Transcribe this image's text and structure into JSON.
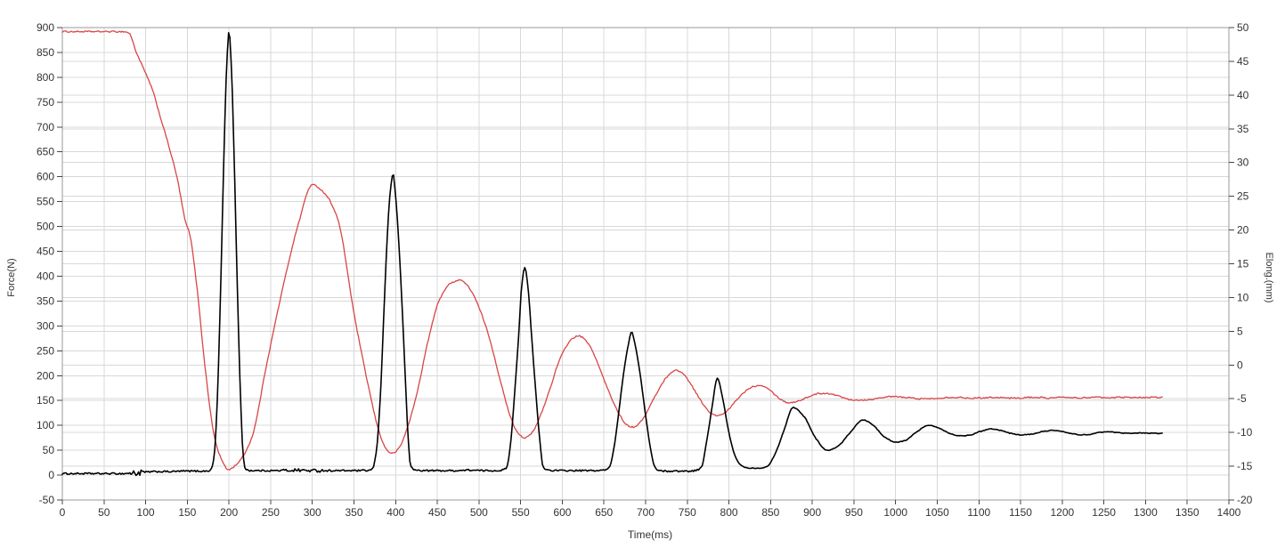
{
  "chart_data": {
    "type": "line",
    "title": "",
    "xlabel": "Time(ms)",
    "ylabel_left": "Force(N)",
    "ylabel_right": "Elong.(mm)",
    "legend": "none",
    "grid": {
      "show": true,
      "vertical_step_ms": 50,
      "horizontal_left_step": 50,
      "horizontal_right_step": 5
    },
    "x_axis": {
      "min": 0,
      "max": 1400,
      "ticks": [
        0,
        50,
        100,
        150,
        200,
        250,
        300,
        350,
        400,
        450,
        500,
        550,
        600,
        650,
        700,
        750,
        800,
        850,
        900,
        950,
        1000,
        1050,
        1100,
        1150,
        1200,
        1250,
        1300,
        1350,
        1400
      ]
    },
    "y_axis_left": {
      "min": -50,
      "max": 900,
      "ticks": [
        900,
        850,
        800,
        750,
        700,
        650,
        600,
        550,
        500,
        450,
        400,
        350,
        300,
        250,
        200,
        150,
        100,
        50,
        0,
        -50
      ]
    },
    "y_axis_right": {
      "min": -20,
      "max": 50,
      "ticks": [
        50,
        45,
        40,
        35,
        30,
        25,
        20,
        15,
        10,
        5,
        0,
        -5,
        -10,
        -15,
        -20
      ]
    },
    "series": [
      {
        "name": "force",
        "axis": "left",
        "color": "#000000",
        "width": 1.6,
        "noise": {
          "base": 0.7,
          "baseline": 1.6,
          "baseline_threshold": 25,
          "baseline_t_max": 765,
          "burst": {
            "t0": 82,
            "t1": 100,
            "amp": 6.5
          },
          "blob": {
            "t0": 262,
            "t1": 312,
            "amp": 3.2
          }
        },
        "points": [
          [
            0,
            3
          ],
          [
            15,
            3
          ],
          [
            30,
            3
          ],
          [
            45,
            3
          ],
          [
            60,
            3
          ],
          [
            74,
            3
          ],
          [
            82,
            4
          ],
          [
            91,
            4
          ],
          [
            100,
            6
          ],
          [
            115,
            7
          ],
          [
            130,
            7
          ],
          [
            145,
            8
          ],
          [
            160,
            8
          ],
          [
            172,
            8
          ],
          [
            178,
            10
          ],
          [
            182,
            35
          ],
          [
            186,
            150
          ],
          [
            190,
            380
          ],
          [
            194,
            650
          ],
          [
            197,
            815
          ],
          [
            200,
            893
          ],
          [
            203,
            815
          ],
          [
            206,
            650
          ],
          [
            210,
            380
          ],
          [
            214,
            150
          ],
          [
            217,
            40
          ],
          [
            220,
            12
          ],
          [
            228,
            9
          ],
          [
            245,
            9
          ],
          [
            262,
            9
          ],
          [
            280,
            10
          ],
          [
            300,
            9
          ],
          [
            320,
            9
          ],
          [
            340,
            9
          ],
          [
            356,
            9
          ],
          [
            366,
            9
          ],
          [
            372,
            12
          ],
          [
            377,
            50
          ],
          [
            382,
            170
          ],
          [
            386,
            330
          ],
          [
            390,
            480
          ],
          [
            393,
            560
          ],
          [
            397,
            605
          ],
          [
            400,
            560
          ],
          [
            404,
            460
          ],
          [
            408,
            330
          ],
          [
            412,
            180
          ],
          [
            415,
            75
          ],
          [
            418,
            18
          ],
          [
            424,
            10
          ],
          [
            440,
            9
          ],
          [
            456,
            9
          ],
          [
            472,
            9
          ],
          [
            488,
            10
          ],
          [
            504,
            9
          ],
          [
            518,
            9
          ],
          [
            527,
            10
          ],
          [
            533,
            14
          ],
          [
            538,
            65
          ],
          [
            543,
            170
          ],
          [
            548,
            290
          ],
          [
            551,
            375
          ],
          [
            555,
            418
          ],
          [
            559,
            375
          ],
          [
            563,
            285
          ],
          [
            568,
            170
          ],
          [
            573,
            70
          ],
          [
            577,
            16
          ],
          [
            584,
            10
          ],
          [
            598,
            9
          ],
          [
            613,
            9
          ],
          [
            628,
            9
          ],
          [
            642,
            9
          ],
          [
            650,
            10
          ],
          [
            656,
            14
          ],
          [
            662,
            55
          ],
          [
            668,
            130
          ],
          [
            674,
            210
          ],
          [
            679,
            260
          ],
          [
            683,
            288
          ],
          [
            688,
            258
          ],
          [
            694,
            195
          ],
          [
            700,
            120
          ],
          [
            706,
            52
          ],
          [
            711,
            16
          ],
          [
            717,
            9
          ],
          [
            728,
            8
          ],
          [
            740,
            8
          ],
          [
            752,
            8
          ],
          [
            761,
            10
          ],
          [
            767,
            16
          ],
          [
            773,
            65
          ],
          [
            780,
            140
          ],
          [
            786,
            195
          ],
          [
            792,
            158
          ],
          [
            800,
            85
          ],
          [
            808,
            36
          ],
          [
            816,
            18
          ],
          [
            825,
            14
          ],
          [
            836,
            14
          ],
          [
            846,
            18
          ],
          [
            856,
            45
          ],
          [
            866,
            90
          ],
          [
            877,
            136
          ],
          [
            890,
            118
          ],
          [
            905,
            72
          ],
          [
            918,
            50
          ],
          [
            930,
            57
          ],
          [
            945,
            85
          ],
          [
            961,
            111
          ],
          [
            972,
            102
          ],
          [
            986,
            78
          ],
          [
            1000,
            66
          ],
          [
            1012,
            70
          ],
          [
            1026,
            88
          ],
          [
            1040,
            100
          ],
          [
            1052,
            95
          ],
          [
            1065,
            84
          ],
          [
            1078,
            79
          ],
          [
            1090,
            81
          ],
          [
            1102,
            88
          ],
          [
            1115,
            93
          ],
          [
            1126,
            90
          ],
          [
            1138,
            84
          ],
          [
            1150,
            81
          ],
          [
            1162,
            82
          ],
          [
            1175,
            87
          ],
          [
            1188,
            90
          ],
          [
            1198,
            88
          ],
          [
            1210,
            84
          ],
          [
            1222,
            81
          ],
          [
            1234,
            82
          ],
          [
            1246,
            86
          ],
          [
            1256,
            87
          ],
          [
            1268,
            85
          ],
          [
            1280,
            84
          ],
          [
            1295,
            85
          ],
          [
            1308,
            84
          ],
          [
            1320,
            84
          ]
        ]
      },
      {
        "name": "elongation",
        "axis": "right",
        "color": "#d94545",
        "width": 1.3,
        "noise": {
          "base": 0.1
        },
        "points": [
          [
            0,
            49.4
          ],
          [
            20,
            49.4
          ],
          [
            40,
            49.4
          ],
          [
            58,
            49.4
          ],
          [
            72,
            49.4
          ],
          [
            80,
            49.2
          ],
          [
            88,
            46.6
          ],
          [
            99,
            43.5
          ],
          [
            108,
            40.8
          ],
          [
            117,
            37.0
          ],
          [
            127,
            32.8
          ],
          [
            138,
            27.6
          ],
          [
            149,
            20.7
          ],
          [
            152,
            19.8
          ],
          [
            162,
            11.0
          ],
          [
            171,
            0.0
          ],
          [
            183,
            -10.9
          ],
          [
            191,
            -14.0
          ],
          [
            199,
            -15.5
          ],
          [
            210,
            -14.6
          ],
          [
            227,
            -10.9
          ],
          [
            245,
            0.0
          ],
          [
            266,
            12.2
          ],
          [
            283,
            20.8
          ],
          [
            300,
            26.7
          ],
          [
            315,
            25.4
          ],
          [
            330,
            21.8
          ],
          [
            351,
            7.0
          ],
          [
            367,
            -3.0
          ],
          [
            380,
            -9.8
          ],
          [
            389,
            -12.5
          ],
          [
            396,
            -13.1
          ],
          [
            404,
            -12.3
          ],
          [
            414,
            -9.3
          ],
          [
            425,
            -4.5
          ],
          [
            439,
            3.6
          ],
          [
            452,
            9.5
          ],
          [
            465,
            12.0
          ],
          [
            477,
            12.6
          ],
          [
            489,
            11.3
          ],
          [
            501,
            8.2
          ],
          [
            513,
            3.8
          ],
          [
            525,
            -2.0
          ],
          [
            536,
            -7.0
          ],
          [
            546,
            -9.9
          ],
          [
            555,
            -10.8
          ],
          [
            564,
            -10.0
          ],
          [
            574,
            -7.4
          ],
          [
            585,
            -3.6
          ],
          [
            596,
            0.5
          ],
          [
            606,
            3.0
          ],
          [
            613,
            4.0
          ],
          [
            620,
            4.3
          ],
          [
            629,
            3.5
          ],
          [
            638,
            1.6
          ],
          [
            648,
            -1.5
          ],
          [
            658,
            -4.6
          ],
          [
            668,
            -7.2
          ],
          [
            677,
            -8.8
          ],
          [
            685,
            -9.2
          ],
          [
            692,
            -8.7
          ],
          [
            700,
            -7.3
          ],
          [
            708,
            -5.4
          ],
          [
            716,
            -3.6
          ],
          [
            724,
            -2.0
          ],
          [
            731,
            -1.1
          ],
          [
            737,
            -0.8
          ],
          [
            744,
            -1.2
          ],
          [
            752,
            -2.4
          ],
          [
            760,
            -4.0
          ],
          [
            768,
            -5.6
          ],
          [
            776,
            -6.9
          ],
          [
            782,
            -7.4
          ],
          [
            787,
            -7.5
          ],
          [
            794,
            -7.2
          ],
          [
            801,
            -6.4
          ],
          [
            809,
            -5.2
          ],
          [
            817,
            -4.2
          ],
          [
            825,
            -3.4
          ],
          [
            832,
            -3.1
          ],
          [
            838,
            -3.0
          ],
          [
            845,
            -3.3
          ],
          [
            852,
            -4.0
          ],
          [
            859,
            -4.8
          ],
          [
            865,
            -5.3
          ],
          [
            871,
            -5.6
          ],
          [
            878,
            -5.5
          ],
          [
            886,
            -5.2
          ],
          [
            894,
            -4.8
          ],
          [
            902,
            -4.4
          ],
          [
            910,
            -4.2
          ],
          [
            918,
            -4.2
          ],
          [
            926,
            -4.4
          ],
          [
            934,
            -4.7
          ],
          [
            942,
            -5.0
          ],
          [
            952,
            -5.2
          ],
          [
            961,
            -5.2
          ],
          [
            970,
            -5.1
          ],
          [
            980,
            -4.9
          ],
          [
            990,
            -4.7
          ],
          [
            1000,
            -4.7
          ],
          [
            1010,
            -4.8
          ],
          [
            1020,
            -4.9
          ],
          [
            1030,
            -5.0
          ],
          [
            1040,
            -5.0
          ],
          [
            1052,
            -4.9
          ],
          [
            1064,
            -4.8
          ],
          [
            1076,
            -4.8
          ],
          [
            1088,
            -4.9
          ],
          [
            1100,
            -4.9
          ],
          [
            1112,
            -4.8
          ],
          [
            1124,
            -4.8
          ],
          [
            1136,
            -4.9
          ],
          [
            1148,
            -4.9
          ],
          [
            1160,
            -4.8
          ],
          [
            1172,
            -4.8
          ],
          [
            1184,
            -4.9
          ],
          [
            1196,
            -4.8
          ],
          [
            1208,
            -4.8
          ],
          [
            1220,
            -4.9
          ],
          [
            1232,
            -4.8
          ],
          [
            1244,
            -4.8
          ],
          [
            1256,
            -4.9
          ],
          [
            1268,
            -4.8
          ],
          [
            1280,
            -4.8
          ],
          [
            1292,
            -4.8
          ],
          [
            1304,
            -4.8
          ],
          [
            1320,
            -4.8
          ]
        ]
      }
    ]
  },
  "styles": {
    "background": "#ffffff",
    "grid_color": "#d8d8d8",
    "border_color": "#999999",
    "tick_color": "#444444",
    "label_color": "#333333"
  }
}
